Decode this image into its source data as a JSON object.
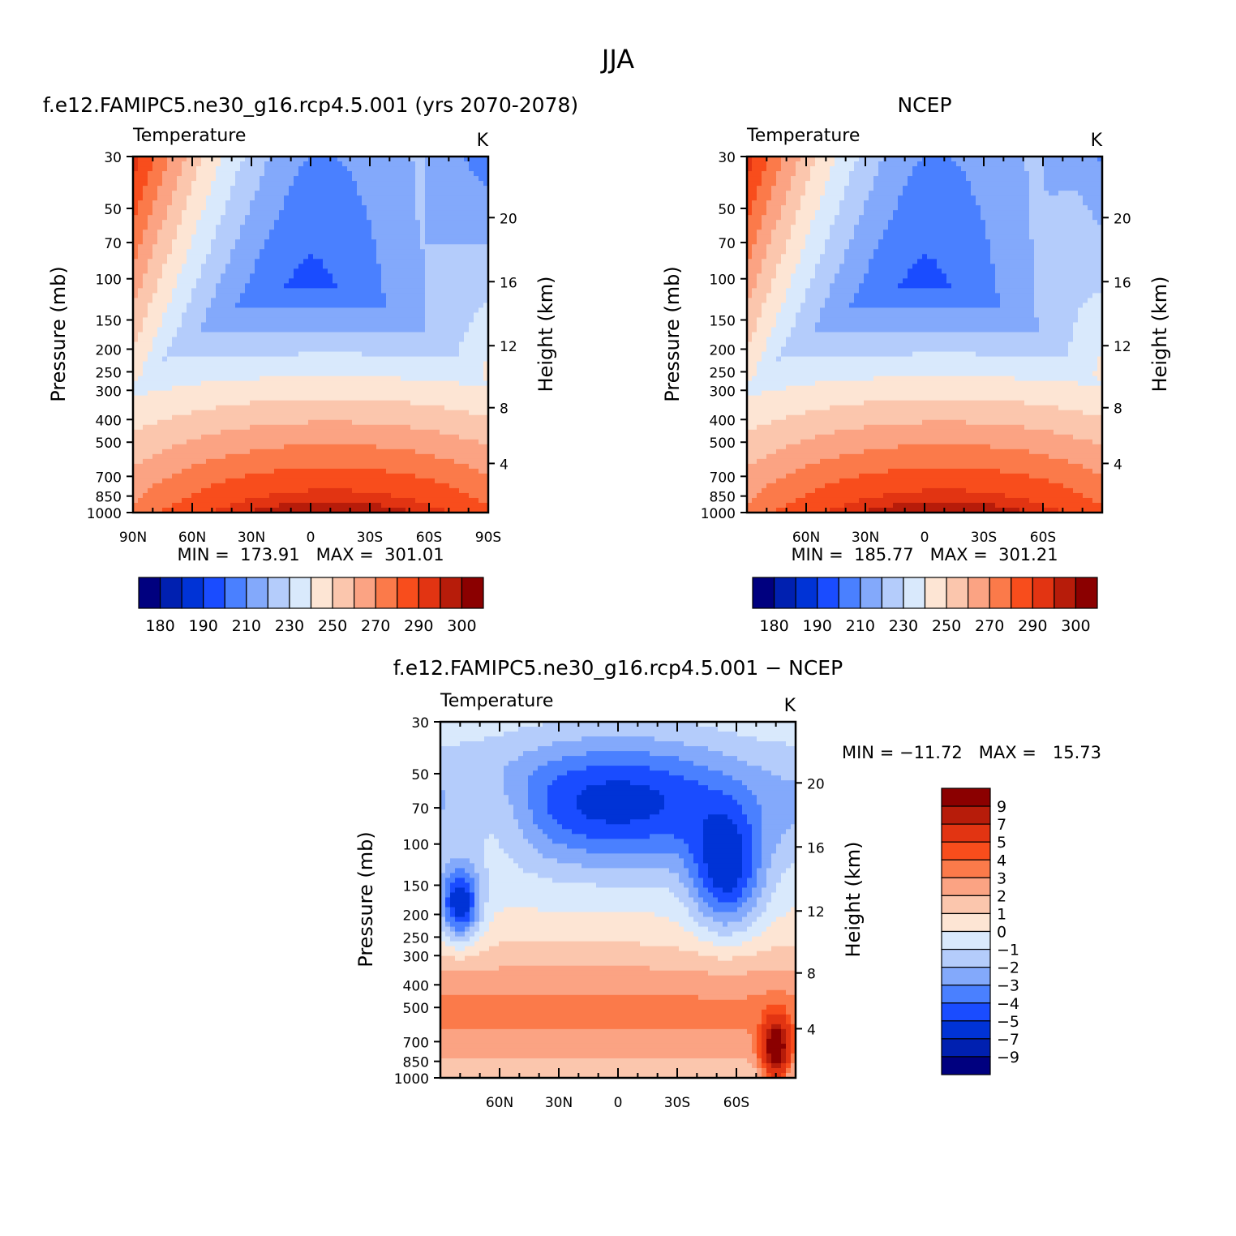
{
  "figure": {
    "title": "JJA"
  },
  "colors": {
    "abs": [
      "#00007f",
      "#0020b0",
      "#0033d6",
      "#1a4cff",
      "#4a80ff",
      "#83a9fb",
      "#b4ccfb",
      "#d9e9fc",
      "#fde5d4",
      "#fbc6ad",
      "#fba383",
      "#fb7a4a",
      "#f84d1c",
      "#e23412",
      "#b71c0a",
      "#8b0000"
    ],
    "diff": [
      "#00007f",
      "#0020b0",
      "#0033d6",
      "#1a4cff",
      "#4a80ff",
      "#83a9fb",
      "#b4ccfb",
      "#d9e9fc",
      "#fde5d4",
      "#fbc6ad",
      "#fba383",
      "#fb7a4a",
      "#f84d1c",
      "#e23412",
      "#b71c0a",
      "#8b0000"
    ]
  },
  "chart_data": [
    {
      "type": "heatmap",
      "title": "f.e12.FAMIPC5.ne30_g16.rcp4.5.001 (yrs 2070-2078)",
      "subtitle": "Temperature",
      "units": "K",
      "ylabel": "Pressure (mb)",
      "y2label": "Height (km)",
      "x_ticks": [
        "90N",
        "60N",
        "30N",
        "0",
        "30S",
        "60S",
        "90S"
      ],
      "x_values": [
        90,
        60,
        30,
        0,
        -30,
        -60,
        -90
      ],
      "y_ticks": [
        30,
        50,
        70,
        100,
        150,
        200,
        250,
        300,
        400,
        500,
        700,
        850,
        1000
      ],
      "height_ticks": [
        20,
        16,
        12,
        8,
        4
      ],
      "ylim": [
        1000,
        30
      ],
      "stats": "MIN =  173.91   MAX =  301.01",
      "min": 173.91,
      "max": 301.01,
      "colorbar_labels": [
        "180",
        "190",
        "210",
        "230",
        "250",
        "270",
        "290",
        "300"
      ],
      "levels": [
        180,
        185,
        190,
        200,
        210,
        220,
        230,
        240,
        250,
        260,
        270,
        280,
        290,
        295,
        300
      ]
    },
    {
      "type": "heatmap",
      "title": "NCEP",
      "subtitle": "Temperature",
      "units": "K",
      "ylabel": "Pressure (mb)",
      "y2label": "Height (km)",
      "x_ticks": [
        "60N",
        "30N",
        "0",
        "30S",
        "60S"
      ],
      "x_values": [
        60,
        30,
        0,
        -30,
        -60
      ],
      "y_ticks": [
        30,
        50,
        70,
        100,
        150,
        200,
        250,
        300,
        400,
        500,
        700,
        850,
        1000
      ],
      "height_ticks": [
        20,
        16,
        12,
        8,
        4
      ],
      "ylim": [
        1000,
        30
      ],
      "stats": "MIN =  185.77   MAX =  301.21",
      "min": 185.77,
      "max": 301.21,
      "colorbar_labels": [
        "180",
        "190",
        "210",
        "230",
        "250",
        "270",
        "290",
        "300"
      ],
      "levels": [
        180,
        185,
        190,
        200,
        210,
        220,
        230,
        240,
        250,
        260,
        270,
        280,
        290,
        295,
        300
      ]
    },
    {
      "type": "heatmap",
      "title": "f.e12.FAMIPC5.ne30_g16.rcp4.5.001 − NCEP",
      "subtitle": "Temperature",
      "units": "K",
      "ylabel": "Pressure (mb)",
      "y2label": "Height (km)",
      "x_ticks": [
        "60N",
        "30N",
        "0",
        "30S",
        "60S"
      ],
      "x_values": [
        60,
        30,
        0,
        -30,
        -60
      ],
      "y_ticks": [
        30,
        50,
        70,
        100,
        150,
        200,
        250,
        300,
        400,
        500,
        700,
        850,
        1000
      ],
      "height_ticks": [
        20,
        16,
        12,
        8,
        4
      ],
      "ylim": [
        1000,
        30
      ],
      "stats": "MIN = −11.72   MAX =   15.73",
      "min": -11.72,
      "max": 15.73,
      "colorbar_labels": [
        "9",
        "7",
        "5",
        "4",
        "3",
        "2",
        "1",
        "0",
        "−1",
        "−2",
        "−3",
        "−4",
        "−5",
        "−7",
        "−9"
      ],
      "levels": [
        -9,
        -7,
        -5,
        -4,
        -3,
        -2,
        -1,
        0,
        1,
        2,
        3,
        4,
        5,
        7,
        9
      ]
    }
  ]
}
